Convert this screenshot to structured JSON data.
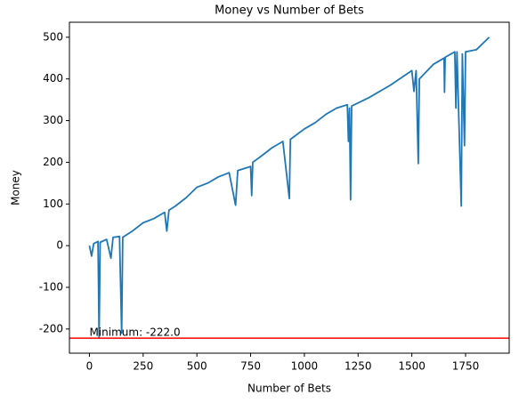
{
  "chart_data": {
    "type": "line",
    "title": "Money vs Number of Bets",
    "xlabel": "Number of Bets",
    "ylabel": "Money",
    "x": [
      0,
      10,
      20,
      40,
      45,
      50,
      80,
      100,
      110,
      140,
      150,
      155,
      200,
      250,
      300,
      350,
      360,
      370,
      400,
      450,
      500,
      550,
      600,
      650,
      680,
      690,
      750,
      755,
      760,
      800,
      850,
      900,
      930,
      935,
      1000,
      1050,
      1100,
      1150,
      1200,
      1205,
      1210,
      1215,
      1220,
      1300,
      1400,
      1500,
      1510,
      1520,
      1530,
      1535,
      1600,
      1650,
      1652,
      1655,
      1700,
      1705,
      1710,
      1730,
      1735,
      1745,
      1750,
      1800,
      1860
    ],
    "values": [
      0,
      -25,
      5,
      10,
      -222,
      8,
      15,
      -30,
      20,
      22,
      -210,
      20,
      35,
      55,
      65,
      80,
      35,
      85,
      95,
      115,
      140,
      150,
      165,
      175,
      97,
      180,
      190,
      120,
      200,
      215,
      235,
      250,
      113,
      255,
      280,
      295,
      315,
      330,
      338,
      250,
      330,
      110,
      335,
      355,
      385,
      420,
      370,
      420,
      197,
      400,
      435,
      450,
      368,
      452,
      465,
      330,
      465,
      95,
      460,
      240,
      465,
      470,
      500
    ],
    "color": "#1f77b4",
    "hline": {
      "value": -222,
      "color": "red"
    },
    "annotation": "Minimum: -222.0",
    "xlim": [
      -93,
      1953
    ],
    "xticks": [
      0,
      250,
      500,
      750,
      1000,
      1250,
      1500,
      1750
    ],
    "ylim": [
      -258,
      536
    ],
    "yticks": [
      -200,
      -100,
      0,
      100,
      200,
      300,
      400,
      500
    ]
  }
}
